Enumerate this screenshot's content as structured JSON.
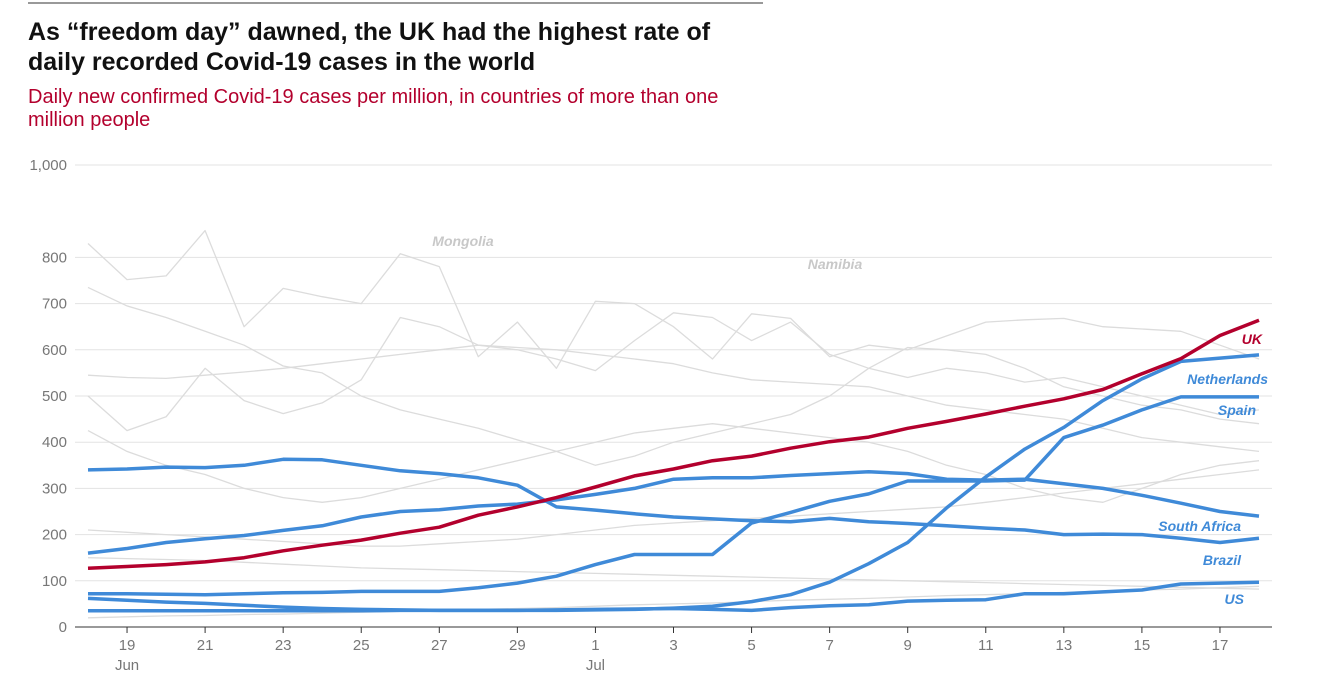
{
  "chart_data": {
    "type": "line",
    "title": "As “freedom day” dawned, the UK had the highest rate of daily recorded Covid-19 cases in the world",
    "subtitle": "Daily new confirmed Covid-19 cases per million, in countries of more than one million people",
    "x": [
      "Jun 18",
      "Jun 19",
      "Jun 20",
      "Jun 21",
      "Jun 22",
      "Jun 23",
      "Jun 24",
      "Jun 25",
      "Jun 26",
      "Jun 27",
      "Jun 28",
      "Jun 29",
      "Jun 30",
      "Jul 1",
      "Jul 2",
      "Jul 3",
      "Jul 4",
      "Jul 5",
      "Jul 6",
      "Jul 7",
      "Jul 8",
      "Jul 9",
      "Jul 10",
      "Jul 11",
      "Jul 12",
      "Jul 13",
      "Jul 14",
      "Jul 15",
      "Jul 16",
      "Jul 17",
      "Jul 18"
    ],
    "xticks": [
      {
        "value": "Jun 19",
        "label": "19"
      },
      {
        "value": "Jun 21",
        "label": "21"
      },
      {
        "value": "Jun 23",
        "label": "23"
      },
      {
        "value": "Jun 25",
        "label": "25"
      },
      {
        "value": "Jun 27",
        "label": "27"
      },
      {
        "value": "Jun 29",
        "label": "29"
      },
      {
        "value": "Jul 1",
        "label": "1"
      },
      {
        "value": "Jul 3",
        "label": "3"
      },
      {
        "value": "Jul 5",
        "label": "5"
      },
      {
        "value": "Jul 7",
        "label": "7"
      },
      {
        "value": "Jul 9",
        "label": "9"
      },
      {
        "value": "Jul 11",
        "label": "11"
      },
      {
        "value": "Jul 13",
        "label": "13"
      },
      {
        "value": "Jul 15",
        "label": "15"
      },
      {
        "value": "Jul 17",
        "label": "17"
      }
    ],
    "month_labels": [
      {
        "at": "Jun 19",
        "label": "Jun"
      },
      {
        "at": "Jul 1",
        "label": "Jul"
      }
    ],
    "ylim": [
      0,
      1000
    ],
    "yticks": [
      0,
      100,
      200,
      300,
      400,
      500,
      600,
      700,
      800,
      {
        "value": 1000,
        "label": "1,000"
      }
    ],
    "grid": true,
    "series": [
      {
        "name": "Mongolia",
        "color": "#dcdcdc",
        "values": [
          830,
          752,
          760,
          858,
          650,
          733,
          715,
          700,
          808,
          780,
          585,
          660,
          560,
          705,
          700,
          650,
          580,
          678,
          668,
          585,
          610,
          600,
          630,
          660,
          665,
          668,
          650,
          645,
          640,
          610,
          580
        ]
      },
      {
        "name": "Namibia",
        "color": "#dcdcdc",
        "values": [
          735,
          695,
          670,
          640,
          610,
          565,
          550,
          500,
          470,
          450,
          430,
          405,
          380,
          350,
          370,
          400,
          420,
          440,
          460,
          500,
          560,
          605,
          600,
          590,
          560,
          520,
          500,
          480,
          470,
          450,
          440
        ]
      },
      {
        "color": "#dcdcdc",
        "values": [
          545,
          540,
          538,
          545,
          552,
          560,
          570,
          580,
          590,
          600,
          610,
          605,
          600,
          590,
          580,
          570,
          550,
          535,
          530,
          525,
          520,
          500,
          480,
          470,
          460,
          450,
          430,
          410,
          400,
          390,
          380
        ]
      },
      {
        "color": "#dcdcdc",
        "values": [
          500,
          425,
          455,
          560,
          490,
          462,
          485,
          535,
          670,
          650,
          610,
          600,
          580,
          555,
          620,
          680,
          670,
          620,
          660,
          590,
          560,
          540,
          560,
          550,
          530,
          540,
          520,
          500,
          480,
          460,
          470
        ]
      },
      {
        "color": "#dcdcdc",
        "values": [
          425,
          380,
          350,
          330,
          300,
          280,
          270,
          280,
          300,
          320,
          340,
          360,
          380,
          400,
          420,
          430,
          440,
          430,
          420,
          410,
          400,
          380,
          350,
          330,
          300,
          280,
          270,
          300,
          330,
          350,
          360
        ]
      },
      {
        "color": "#dcdcdc",
        "values": [
          210,
          205,
          200,
          195,
          190,
          185,
          180,
          175,
          175,
          180,
          185,
          190,
          200,
          210,
          220,
          225,
          230,
          235,
          240,
          245,
          250,
          255,
          260,
          270,
          280,
          290,
          300,
          310,
          320,
          330,
          340
        ]
      },
      {
        "color": "#dcdcdc",
        "values": [
          150,
          148,
          146,
          144,
          140,
          136,
          132,
          128,
          126,
          124,
          122,
          120,
          118,
          116,
          114,
          112,
          110,
          108,
          106,
          104,
          102,
          100,
          98,
          96,
          94,
          92,
          90,
          88,
          86,
          84,
          82
        ]
      },
      {
        "color": "#dcdcdc",
        "values": [
          20,
          22,
          24,
          25,
          27,
          28,
          30,
          32,
          34,
          36,
          38,
          40,
          42,
          45,
          48,
          50,
          52,
          55,
          58,
          60,
          62,
          65,
          68,
          70,
          72,
          75,
          78,
          80,
          82,
          85,
          88
        ]
      },
      {
        "name": "Netherlands",
        "color": "#3f8ad8",
        "values": [
          62,
          58,
          54,
          51,
          47,
          43,
          40,
          38,
          37,
          36,
          36,
          36,
          36,
          37,
          38,
          41,
          45,
          55,
          70,
          97,
          137,
          183,
          258,
          325,
          385,
          432,
          490,
          537,
          575,
          582,
          589
        ]
      },
      {
        "name": "Spain",
        "color": "#3f8ad8",
        "values": [
          72,
          72,
          71,
          70,
          72,
          74,
          75,
          77,
          77,
          77,
          85,
          95,
          110,
          135,
          157,
          157,
          157,
          225,
          248,
          272,
          288,
          316,
          316,
          316,
          318,
          410,
          437,
          470,
          498,
          498,
          498
        ]
      },
      {
        "name": "South Africa",
        "color": "#3f8ad8",
        "values": [
          160,
          170,
          183,
          191,
          198,
          209,
          219,
          238,
          250,
          254,
          262,
          266,
          275,
          287,
          300,
          320,
          323,
          323,
          328,
          332,
          336,
          332,
          320,
          318,
          320,
          310,
          300,
          285,
          268,
          250,
          240
        ]
      },
      {
        "name": "Brazil",
        "color": "#3f8ad8",
        "values": [
          340,
          342,
          346,
          345,
          350,
          363,
          362,
          350,
          338,
          332,
          323,
          307,
          260,
          253,
          245,
          238,
          234,
          230,
          228,
          235,
          228,
          224,
          219,
          214,
          210,
          200,
          201,
          200,
          192,
          183,
          192
        ]
      },
      {
        "name": "US",
        "color": "#3f8ad8",
        "values": [
          35,
          35,
          35,
          35,
          35,
          35,
          35,
          35,
          36,
          36,
          36,
          36,
          37,
          38,
          39,
          40,
          38,
          36,
          42,
          46,
          48,
          56,
          58,
          59,
          72,
          72,
          76,
          80,
          93,
          95,
          97
        ]
      },
      {
        "name": "UK",
        "color": "#b3002d",
        "values": [
          127,
          131,
          135,
          141,
          150,
          165,
          177,
          188,
          203,
          216,
          242,
          260,
          280,
          303,
          327,
          342,
          360,
          370,
          387,
          401,
          411,
          430,
          445,
          461,
          478,
          494,
          514,
          548,
          581,
          631,
          664
        ]
      }
    ]
  }
}
